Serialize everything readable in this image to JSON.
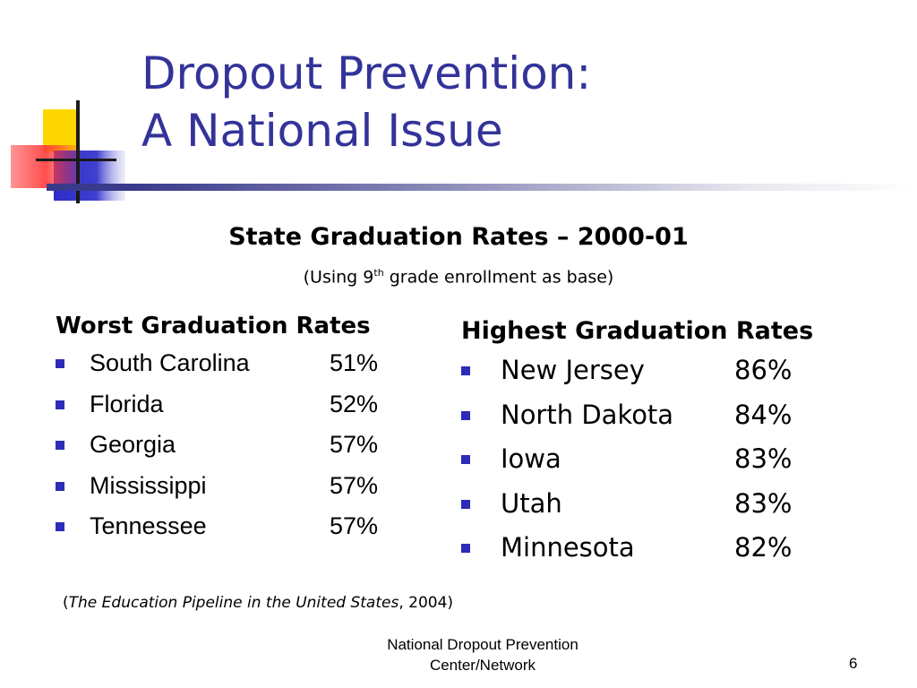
{
  "title": {
    "line1": "Dropout Prevention:",
    "line2": "A National Issue"
  },
  "subheading": "State Graduation Rates – 2000-01",
  "note": {
    "before": "(Using  9",
    "sup": "th",
    "after": " grade enrollment as base)"
  },
  "worst": {
    "header": "Worst Graduation Rates",
    "items": [
      {
        "state": "South Carolina",
        "rate": "51%"
      },
      {
        "state": "Florida",
        "rate": "52%"
      },
      {
        "state": "Georgia",
        "rate": "57%"
      },
      {
        "state": "Mississippi",
        "rate": "57%"
      },
      {
        "state": "Tennessee",
        "rate": "57%"
      }
    ]
  },
  "highest": {
    "header": "Highest Graduation Rates",
    "items": [
      {
        "state": "New Jersey",
        "rate": "86%"
      },
      {
        "state": "North Dakota",
        "rate": "84%"
      },
      {
        "state": "Iowa",
        "rate": "83%"
      },
      {
        "state": "Utah",
        "rate": "83%"
      },
      {
        "state": "Minnesota",
        "rate": "82%"
      }
    ]
  },
  "source": {
    "open": "(",
    "title": "The Education Pipeline in the United States",
    "rest": ", 2004)"
  },
  "footer": {
    "line1": "National Dropout Prevention",
    "line2": "Center/Network"
  },
  "page_number": "6",
  "colors": {
    "title": "#333399",
    "bullet": "#2c2cb8",
    "deco_yellow": "#ffd700",
    "deco_blue": "#2c2cc8",
    "deco_red": "#ff4040"
  }
}
